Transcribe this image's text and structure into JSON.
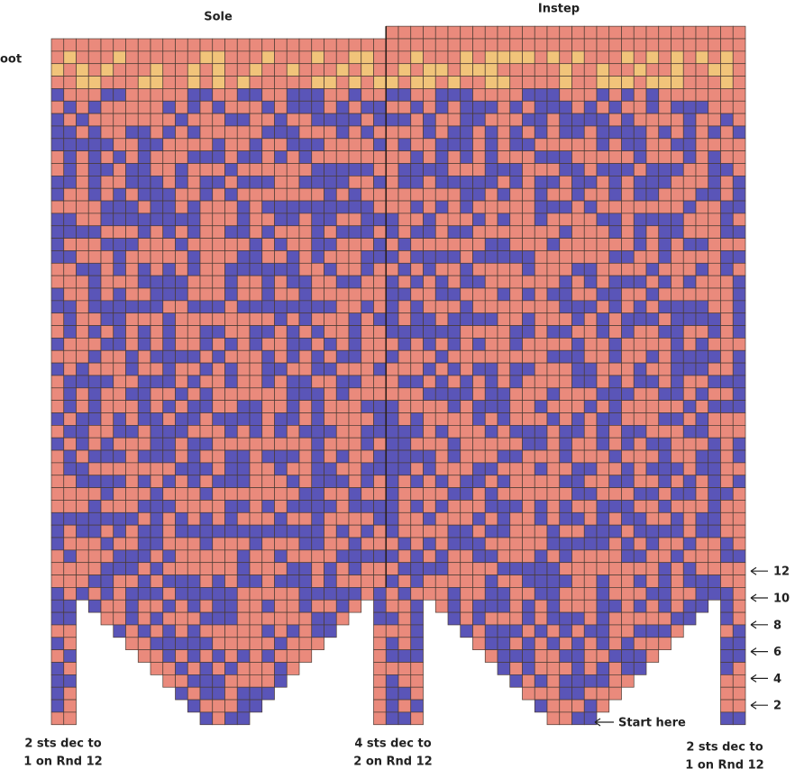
{
  "header": {
    "sole": "Sole",
    "instep": "Instep",
    "foot": "oot"
  },
  "rounds": [
    12,
    10,
    8,
    6,
    4,
    2
  ],
  "start": "Start here",
  "notes": [
    [
      "2 sts dec to",
      "1 on Rnd 12"
    ],
    [
      "4 sts dec to",
      "2 on Rnd 12"
    ],
    [
      "2 sts dec to",
      "1 on Rnd 12"
    ]
  ]
}
